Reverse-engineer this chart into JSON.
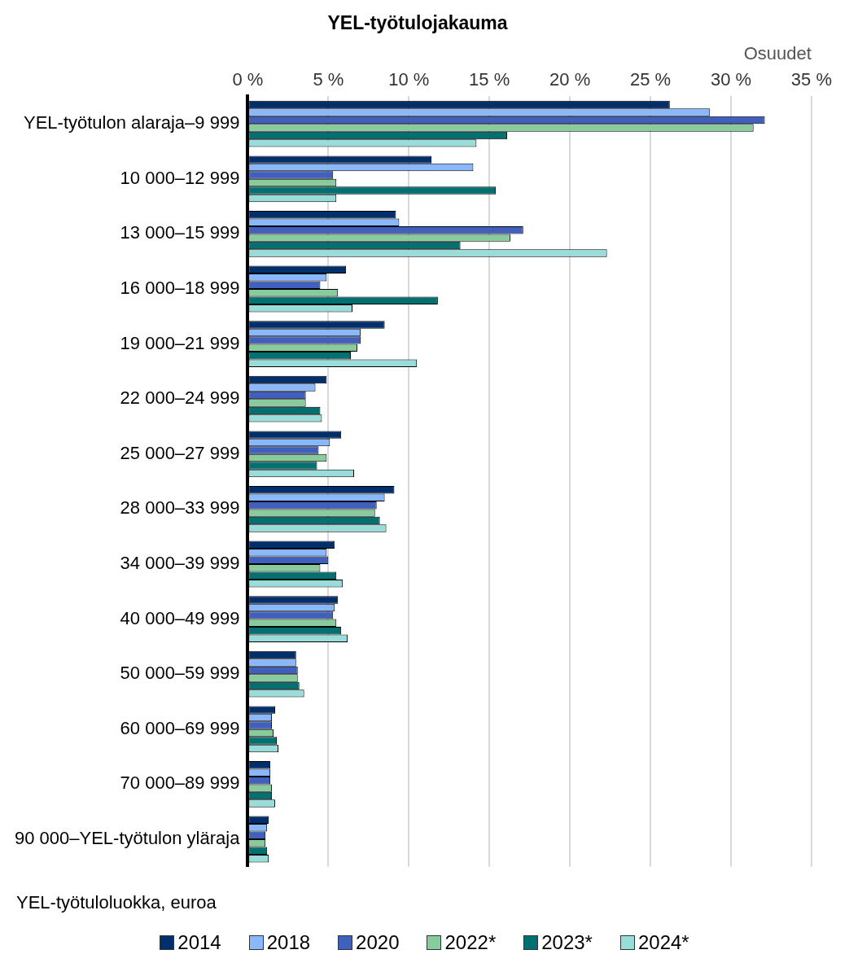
{
  "chart_data": {
    "type": "bar",
    "orientation": "horizontal",
    "title": "YEL-työtulojakauma",
    "xlabel": "Osuudet",
    "ylabel": "YEL-työtuloluokka, euroa",
    "categories": [
      "YEL-työtulon alaraja–9 999",
      "10 000–12 999",
      "13 000–15 999",
      "16 000–18 999",
      "19 000–21 999",
      "22 000–24 999",
      "25 000–27 999",
      "28 000–33 999",
      "34 000–39 999",
      "40 000–49 999",
      "50 000–59 999",
      "60 000–69 999",
      "70 000–89 999",
      "90 000–YEL-työtulon yläraja"
    ],
    "xlim": [
      0,
      35
    ],
    "xticks": [
      {
        "value": 0,
        "label": "0 %"
      },
      {
        "value": 5,
        "label": "5 %"
      },
      {
        "value": 10,
        "label": "10 %"
      },
      {
        "value": 15,
        "label": "15 %"
      },
      {
        "value": 20,
        "label": "20 %"
      },
      {
        "value": 25,
        "label": "25 %"
      },
      {
        "value": 30,
        "label": "30 %"
      },
      {
        "value": 35,
        "label": "35 %"
      }
    ],
    "grid": "x",
    "legend": "bottom",
    "series": [
      {
        "name": "2014",
        "color": "#002f6c",
        "values": [
          26.2,
          11.4,
          9.2,
          6.1,
          8.5,
          4.9,
          5.8,
          9.1,
          5.4,
          5.6,
          3.0,
          1.7,
          1.4,
          1.3
        ]
      },
      {
        "name": "2018",
        "color": "#8ab8ff",
        "values": [
          28.7,
          14.0,
          9.4,
          4.9,
          7.0,
          4.2,
          5.1,
          8.5,
          4.9,
          5.4,
          3.0,
          1.5,
          1.4,
          1.2
        ]
      },
      {
        "name": "2020",
        "color": "#4060c0",
        "values": [
          32.1,
          5.3,
          17.1,
          4.5,
          7.0,
          3.6,
          4.4,
          8.0,
          5.0,
          5.3,
          3.1,
          1.5,
          1.4,
          1.1
        ]
      },
      {
        "name": "2022*",
        "color": "#88cc9e",
        "values": [
          31.4,
          5.5,
          16.3,
          5.6,
          6.8,
          3.6,
          4.9,
          7.9,
          4.5,
          5.5,
          3.1,
          1.6,
          1.5,
          1.1
        ]
      },
      {
        "name": "2023*",
        "color": "#007070",
        "values": [
          16.1,
          15.4,
          13.2,
          11.8,
          6.4,
          4.5,
          4.3,
          8.2,
          5.5,
          5.8,
          3.2,
          1.8,
          1.5,
          1.2
        ]
      },
      {
        "name": "2024*",
        "color": "#99dddb",
        "values": [
          14.2,
          5.5,
          22.3,
          6.5,
          10.5,
          4.6,
          6.6,
          8.6,
          5.9,
          6.2,
          3.5,
          1.9,
          1.7,
          1.3
        ]
      }
    ]
  }
}
